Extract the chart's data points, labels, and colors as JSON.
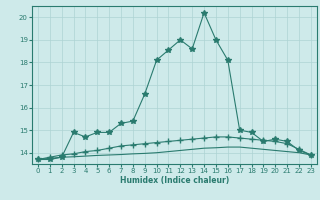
{
  "title": "",
  "xlabel": "Humidex (Indice chaleur)",
  "x": [
    0,
    1,
    2,
    3,
    4,
    5,
    6,
    7,
    8,
    9,
    10,
    11,
    12,
    13,
    14,
    15,
    16,
    17,
    18,
    19,
    20,
    21,
    22,
    23
  ],
  "line1": [
    13.7,
    13.7,
    13.8,
    14.9,
    14.7,
    14.9,
    14.9,
    15.3,
    15.4,
    16.6,
    18.1,
    18.55,
    19.0,
    18.6,
    20.2,
    19.0,
    18.1,
    15.0,
    14.9,
    14.5,
    14.6,
    14.5,
    14.1,
    13.9
  ],
  "line3": [
    13.7,
    13.8,
    13.9,
    13.95,
    14.05,
    14.1,
    14.2,
    14.3,
    14.35,
    14.4,
    14.45,
    14.5,
    14.55,
    14.6,
    14.65,
    14.7,
    14.7,
    14.65,
    14.6,
    14.55,
    14.5,
    14.4,
    14.15,
    13.9
  ],
  "line4": [
    13.7,
    13.75,
    13.8,
    13.82,
    13.85,
    13.88,
    13.9,
    13.92,
    13.95,
    13.97,
    14.0,
    14.05,
    14.1,
    14.15,
    14.2,
    14.22,
    14.25,
    14.25,
    14.2,
    14.15,
    14.1,
    14.05,
    14.0,
    13.9
  ],
  "line_color": "#2a7b6f",
  "bg_color": "#ceeaea",
  "grid_color": "#aed4d4",
  "ylim": [
    13.5,
    20.5
  ],
  "xlim": [
    -0.5,
    23.5
  ],
  "yticks": [
    14,
    15,
    16,
    17,
    18,
    19,
    20
  ],
  "xticks": [
    0,
    1,
    2,
    3,
    4,
    5,
    6,
    7,
    8,
    9,
    10,
    11,
    12,
    13,
    14,
    15,
    16,
    17,
    18,
    19,
    20,
    21,
    22,
    23
  ]
}
